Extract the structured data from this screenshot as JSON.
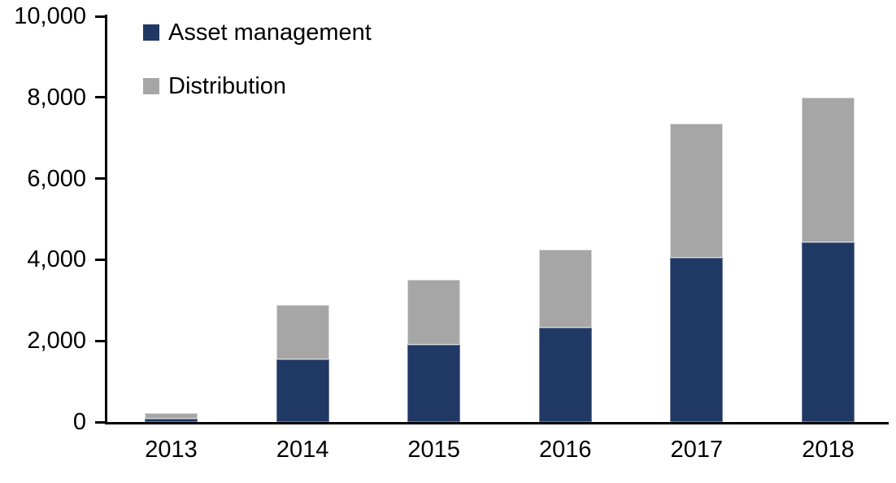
{
  "chart_data": {
    "type": "bar",
    "stacked": true,
    "title": "",
    "xlabel": "",
    "ylabel": "",
    "categories": [
      "2013",
      "2014",
      "2015",
      "2016",
      "2017",
      "2018"
    ],
    "series": [
      {
        "name": "Asset management",
        "color": "#203864",
        "values": [
          80,
          1540,
          1900,
          2320,
          4040,
          4420
        ]
      },
      {
        "name": "Distribution",
        "color": "#a6a6a6",
        "values": [
          140,
          1340,
          1600,
          1920,
          3320,
          3580
        ]
      }
    ],
    "totals": [
      220,
      2880,
      3500,
      4240,
      7360,
      8000
    ],
    "ylim": [
      0,
      10000
    ],
    "y_ticks": [
      0,
      2000,
      4000,
      6000,
      8000,
      10000
    ],
    "y_tick_labels": [
      "0",
      "2,000",
      "4,000",
      "6,000",
      "8,000",
      "10,000"
    ],
    "grid": false,
    "legend_position": "top-left",
    "axis_color": "#000000",
    "text_color": "#000000"
  },
  "legend": {
    "items": [
      {
        "label": "Asset management",
        "color": "#203864"
      },
      {
        "label": "Distribution",
        "color": "#a6a6a6"
      }
    ]
  }
}
